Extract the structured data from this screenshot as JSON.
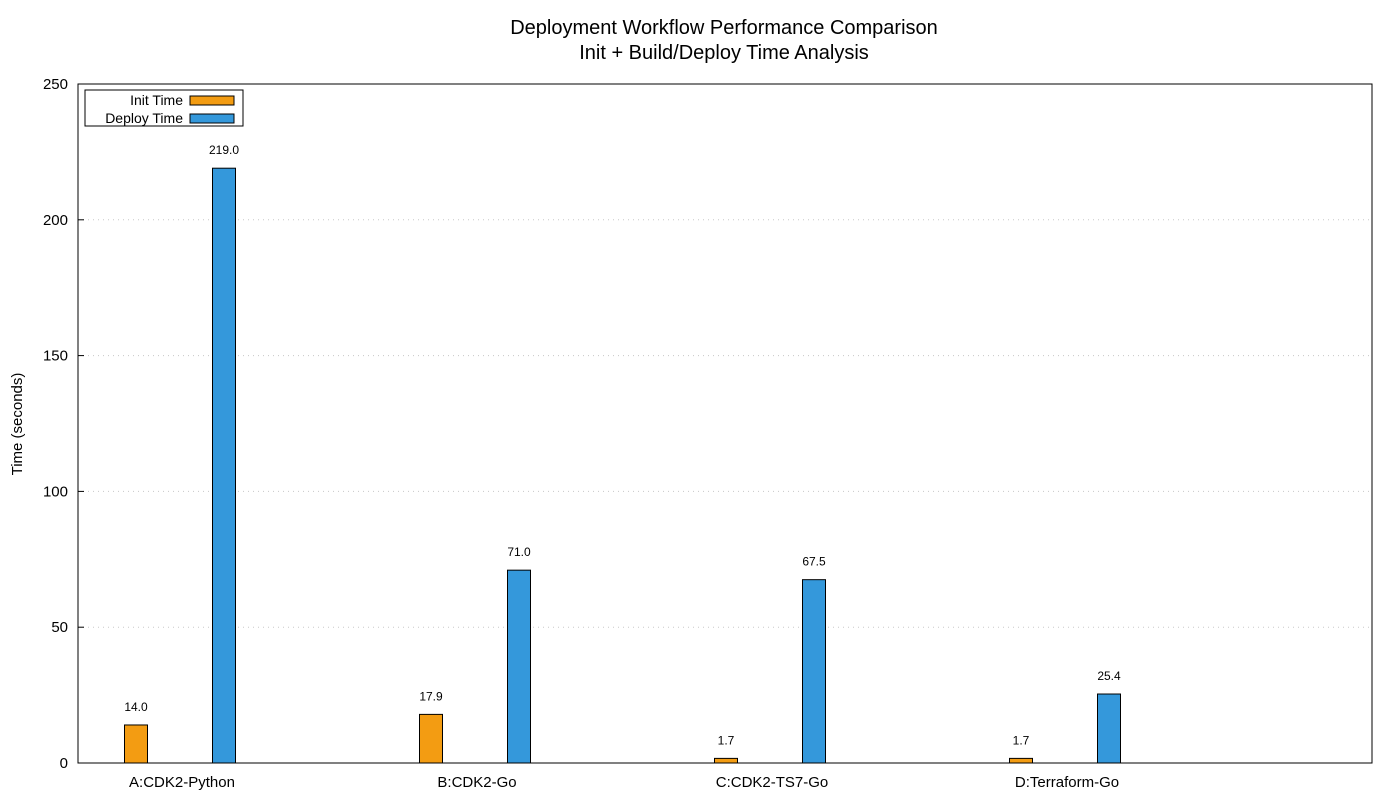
{
  "chart_data": {
    "type": "bar",
    "title": "Deployment Workflow Performance Comparison",
    "subtitle": "Init + Build/Deploy Time Analysis",
    "xlabel": "",
    "ylabel": "Time (seconds)",
    "ylim": [
      0,
      250
    ],
    "yticks": [
      0,
      50,
      100,
      150,
      200,
      250
    ],
    "grid": true,
    "legend_position": "top-left",
    "categories": [
      "A:CDK2-Python",
      "B:CDK2-Go",
      "C:CDK2-TS7-Go",
      "D:Terraform-Go"
    ],
    "series": [
      {
        "name": "Init Time",
        "color": "#f39c12",
        "values": [
          14.0,
          17.9,
          1.7,
          1.7
        ]
      },
      {
        "name": "Deploy Time",
        "color": "#3498db",
        "values": [
          219.0,
          71.0,
          67.5,
          25.4
        ]
      }
    ],
    "value_labels": [
      [
        "14.0",
        "17.9",
        "1.7",
        "1.7"
      ],
      [
        "219.0",
        "71.0",
        "67.5",
        "25.4"
      ]
    ]
  }
}
